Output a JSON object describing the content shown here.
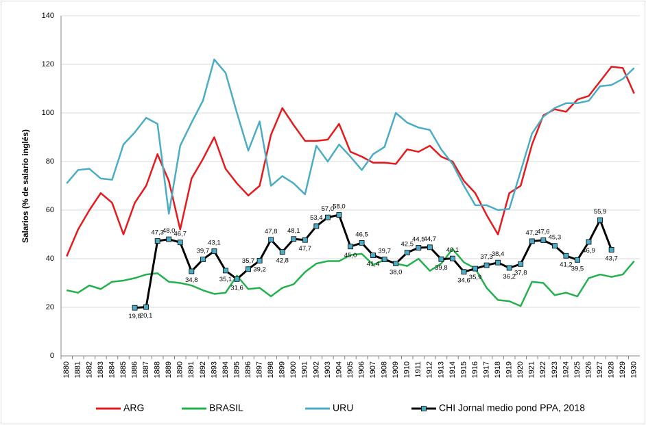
{
  "chart_data": {
    "type": "line",
    "y_label": "Salarios (% de salario inglés)",
    "categories": [
      "1880",
      "1881",
      "1882",
      "1883",
      "1884",
      "1885",
      "1886",
      "1887",
      "1888",
      "1889",
      "1890",
      "1891",
      "1892",
      "1893",
      "1894",
      "1895",
      "1896",
      "1897",
      "1898",
      "1899",
      "1900",
      "1901",
      "1902",
      "1903",
      "1904",
      "1905",
      "1906",
      "1907",
      "1908",
      "1909",
      "1910",
      "1911",
      "1912",
      "1913",
      "1914",
      "1915",
      "1916",
      "1917",
      "1918",
      "1919",
      "1920",
      "1921",
      "1922",
      "1923",
      "1924",
      "1925",
      "1926",
      "1927",
      "1928",
      "1929",
      "1930"
    ],
    "series": [
      {
        "name": "ARG",
        "color": "#e8191c",
        "values": [
          41,
          52,
          60,
          67,
          63,
          50,
          63,
          70,
          83,
          72,
          52,
          73,
          81,
          90,
          77,
          71,
          66,
          70,
          91,
          102,
          95,
          88.5,
          88.5,
          89,
          95.5,
          84,
          82,
          79.5,
          79.5,
          79,
          85,
          84,
          86.5,
          82,
          80,
          72,
          67,
          58,
          50,
          67,
          70,
          87,
          99,
          101.5,
          100.5,
          105.5,
          107,
          113,
          119,
          118.5,
          108
        ]
      },
      {
        "name": "BRASIL",
        "color": "#22b14c",
        "values": [
          27,
          26,
          29,
          27.5,
          30.5,
          31,
          32,
          33.5,
          34,
          30.5,
          30,
          29,
          27,
          25.5,
          26,
          33,
          27.5,
          28,
          24.5,
          28,
          29.5,
          34.5,
          38,
          39,
          39,
          41.5,
          42,
          37.5,
          39.5,
          38,
          37,
          40,
          35,
          38,
          44,
          38.5,
          36,
          28,
          23,
          22.5,
          20.5,
          30.5,
          30,
          25,
          26,
          24.5,
          32,
          33.5,
          32.5,
          33.5,
          39
        ]
      },
      {
        "name": "URU",
        "color": "#4bacc6",
        "values": [
          71,
          76.5,
          77,
          73,
          72.5,
          87,
          92,
          98,
          95.5,
          58.5,
          86.5,
          96,
          105,
          122,
          116.5,
          100,
          84.5,
          96.5,
          70,
          74,
          71,
          66.5,
          86.5,
          80,
          87,
          82,
          76.5,
          83,
          86,
          100,
          96,
          94,
          93,
          85,
          79,
          70,
          62,
          62,
          60,
          60.5,
          76,
          91.5,
          98.5,
          102,
          104,
          104,
          105,
          111,
          111.5,
          114,
          118.5
        ]
      },
      {
        "name": "CHI Jornal medio pond PPA, 2018",
        "color": "#000000",
        "marker_color": "#4bacc6",
        "values": [
          null,
          null,
          null,
          null,
          null,
          null,
          19.8,
          20.1,
          47.3,
          48.0,
          46.7,
          34.8,
          39.7,
          43.1,
          35.1,
          31.6,
          35.7,
          39.2,
          47.8,
          42.8,
          48.1,
          47.7,
          53.4,
          57.0,
          58.0,
          45.0,
          46.5,
          41.4,
          39.7,
          38.0,
          42.5,
          44.5,
          44.7,
          39.8,
          40.1,
          34.6,
          35.9,
          37.3,
          38.4,
          36.2,
          37.8,
          47.2,
          47.6,
          45.3,
          41.2,
          39.5,
          46.9,
          55.9,
          43.7,
          null,
          null
        ],
        "value_labels": [
          null,
          null,
          null,
          null,
          null,
          null,
          "19,8",
          "20,1",
          "47,3",
          "48,0",
          "46,7",
          "34,8",
          "39,7",
          "43,1",
          "35,1",
          "31,6",
          "35,7",
          "39,2",
          "47,8",
          "42,8",
          "48,1",
          "47,7",
          "53,4",
          "57,0",
          "58,0",
          "45,0",
          "46,5",
          "41,4",
          "39,7",
          "38,0",
          "42,5",
          "44,5",
          "44,7",
          "39,8",
          "40,1",
          "34,6",
          "35,9",
          "37,3",
          "38,4",
          "36,2",
          "37,8",
          "47,2",
          "47,6",
          "45,3",
          "41,2",
          "39,5",
          "46,9",
          "55,9",
          "43,7",
          null,
          null
        ]
      }
    ],
    "ylim": [
      0,
      140
    ],
    "yticks": [
      0,
      20,
      40,
      60,
      80,
      100,
      120,
      140
    ],
    "grid": true
  }
}
